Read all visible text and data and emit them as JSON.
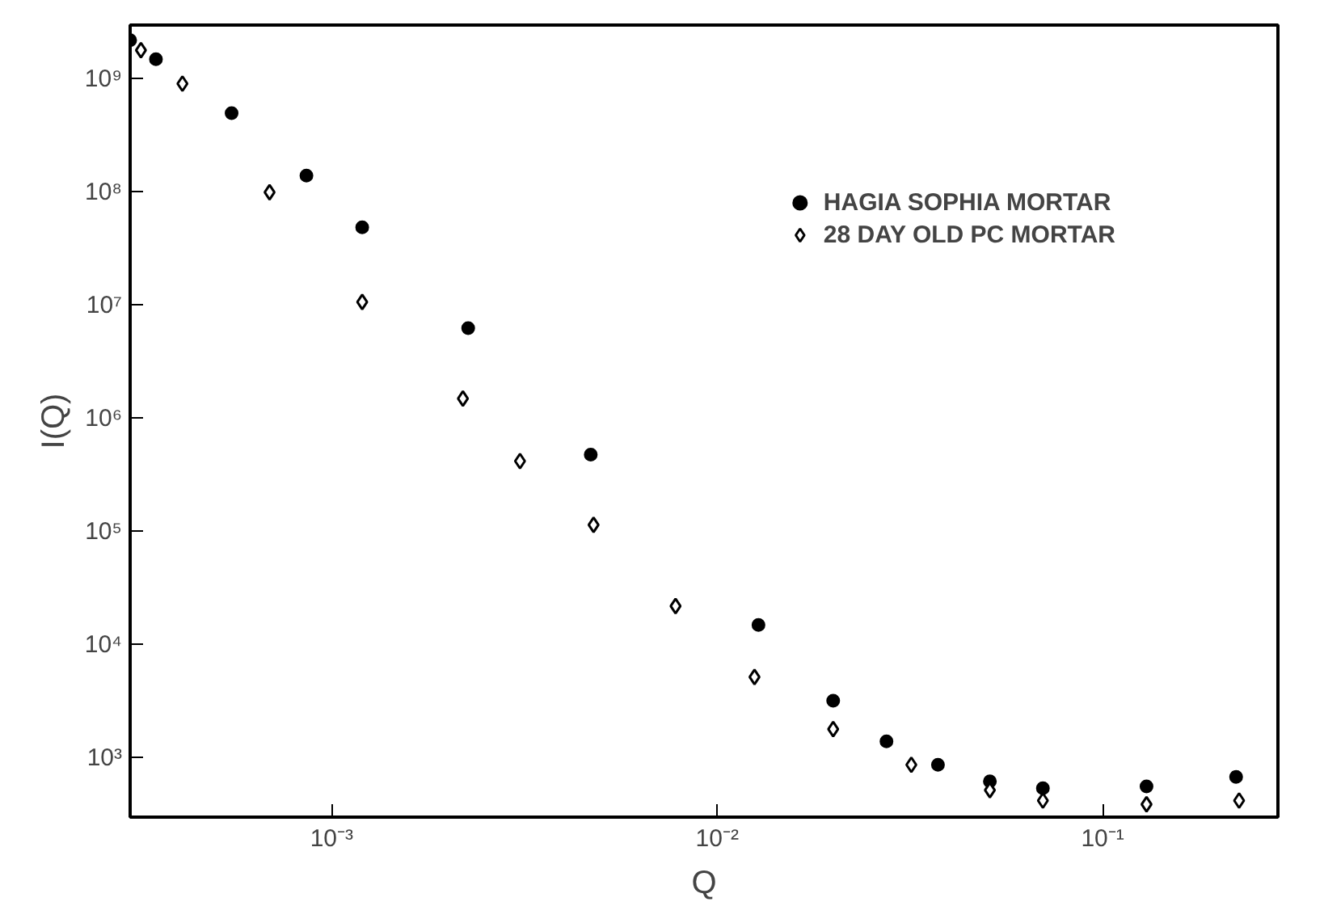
{
  "chart_data": {
    "type": "scatter",
    "xlabel": "Q",
    "ylabel": "I(Q)",
    "log": "xy",
    "grid": false,
    "legend": "top right",
    "xlim": [
      0.0003,
      0.285
    ],
    "ylim": [
      300,
      3000000000
    ],
    "xticks": [
      {
        "value": 0.001,
        "label": "10⁻³"
      },
      {
        "value": 0.01,
        "label": "10⁻²"
      },
      {
        "value": 0.1,
        "label": "10⁻¹"
      }
    ],
    "yticks": [
      {
        "value": 1000,
        "label": "10³"
      },
      {
        "value": 10000,
        "label": "10⁴"
      },
      {
        "value": 100000,
        "label": "10⁵"
      },
      {
        "value": 1000000,
        "label": "10⁶"
      },
      {
        "value": 10000000,
        "label": "10⁷"
      },
      {
        "value": 100000000,
        "label": "10⁸"
      },
      {
        "value": 1000000000,
        "label": "10⁹"
      }
    ],
    "series": [
      {
        "name": "HAGIA SOPHIA MORTAR",
        "color": "#000000",
        "marker": "circle",
        "x": [
          0.0003,
          0.00035,
          0.00055,
          0.00086,
          0.0012,
          0.00226,
          0.0047,
          0.0128,
          0.02,
          0.0275,
          0.0374,
          0.051,
          0.07,
          0.13,
          0.222
        ],
        "values": [
          2200000000,
          1500000000,
          500000000,
          140000000,
          49000000,
          6300000,
          480000,
          15000,
          3200,
          1400,
          870,
          620,
          540,
          560,
          680
        ]
      },
      {
        "name": "28 DAY OLD PC MORTAR",
        "color": "#000000",
        "marker": "diamond",
        "x": [
          0.00032,
          0.00041,
          0.00069,
          0.0012,
          0.00219,
          0.00308,
          0.00478,
          0.0078,
          0.0125,
          0.02,
          0.0319,
          0.051,
          0.07,
          0.13,
          0.226
        ],
        "values": [
          1800000000,
          910000000,
          100000000,
          10700000,
          1500000,
          420000,
          115000,
          22000,
          5200,
          1800,
          870,
          520,
          420,
          390,
          420
        ]
      }
    ]
  }
}
